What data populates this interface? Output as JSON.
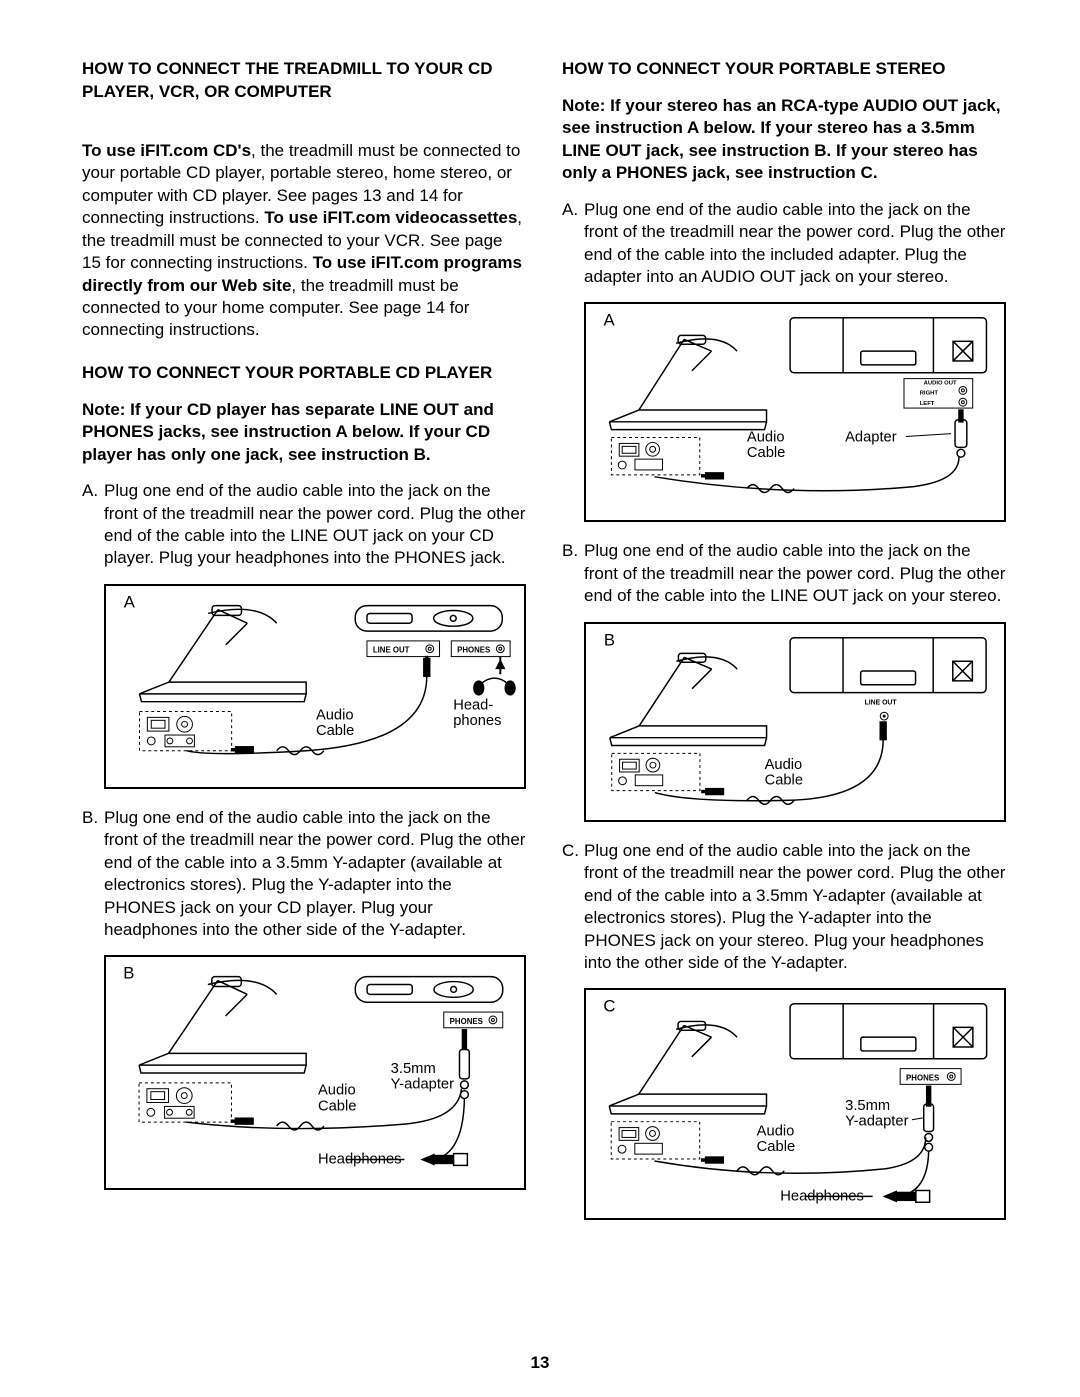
{
  "page_number": "13",
  "colors": {
    "text": "#000000",
    "bg": "#ffffff",
    "rule": "#000000"
  },
  "left": {
    "heading": "HOW TO CONNECT THE TREADMILL TO YOUR CD PLAYER, VCR, OR COMPUTER",
    "intro_html": "<b>To use iFIT.com CD's</b>, the treadmill must be connected to your portable CD player, portable stereo, home stereo, or computer with CD player. See pages 13 and 14 for connecting instructions. <b>To use iFIT.com videocassettes</b>, the treadmill must be connected to your VCR. See page 15 for connecting instructions. <b>To use iFIT.com programs directly from our Web site</b>, the treadmill must be connected to your home computer. See page 14 for connecting instructions.",
    "sub_heading": "HOW TO CONNECT YOUR PORTABLE CD PLAYER",
    "note": "Note: If your CD player has separate LINE OUT and PHONES jacks, see instruction A below. If your CD player has only one jack, see instruction B.",
    "step_a": "Plug one end of the audio cable into the jack on the front of the treadmill near the power cord. Plug the other end of the cable into the LINE OUT jack on your CD player. Plug your headphones into the PHONES jack.",
    "step_b": "Plug one end of the audio cable into the jack on the front of the treadmill near the power cord. Plug the other end of the cable into a 3.5mm Y-adapter (available at electronics stores). Plug the Y-adapter into the PHONES jack on your CD player. Plug your headphones into the other side of the Y-adapter.",
    "fig_a": {
      "letter": "A",
      "audio_cable": "Audio\nCable",
      "headphones": "Head-\nphones",
      "line_out": "LINE OUT",
      "phones": "PHONES"
    },
    "fig_b": {
      "letter": "B",
      "audio_cable": "Audio\nCable",
      "y_adapter": "3.5mm\nY-adapter",
      "headphones": "Headphones",
      "phones": "PHONES"
    }
  },
  "right": {
    "heading": "HOW TO CONNECT YOUR PORTABLE STEREO",
    "note": "Note: If your stereo has an RCA-type AUDIO OUT jack, see instruction A below. If your stereo has a 3.5mm LINE OUT jack, see instruction B. If your stereo has only a PHONES jack, see instruction C.",
    "step_a": "Plug one end of the audio cable into the jack on the front of the treadmill near the power cord. Plug the other end of the cable into the included adapter. Plug the adapter into an AUDIO OUT jack on your stereo.",
    "step_b": "Plug one end of the audio cable into the jack on the front of the treadmill near the power cord. Plug the other end of the cable into the LINE OUT jack on your stereo.",
    "step_c": "Plug one end of the audio cable into the jack on the front of the treadmill near the power cord. Plug the other end of the cable into a 3.5mm Y-adapter (available at electronics stores). Plug the Y-adapter into the PHONES jack on your stereo. Plug your headphones into the other side of the Y-adapter.",
    "fig_a": {
      "letter": "A",
      "audio_cable": "Audio\nCable",
      "adapter": "Adapter",
      "audio_out": "AUDIO OUT",
      "right": "RIGHT",
      "left": "LEFT"
    },
    "fig_b": {
      "letter": "B",
      "audio_cable": "Audio\nCable",
      "line_out": "LINE OUT"
    },
    "fig_c": {
      "letter": "C",
      "audio_cable": "Audio\nCable",
      "y_adapter": "3.5mm\nY-adapter",
      "headphones": "Headphones",
      "phones": "PHONES"
    }
  }
}
